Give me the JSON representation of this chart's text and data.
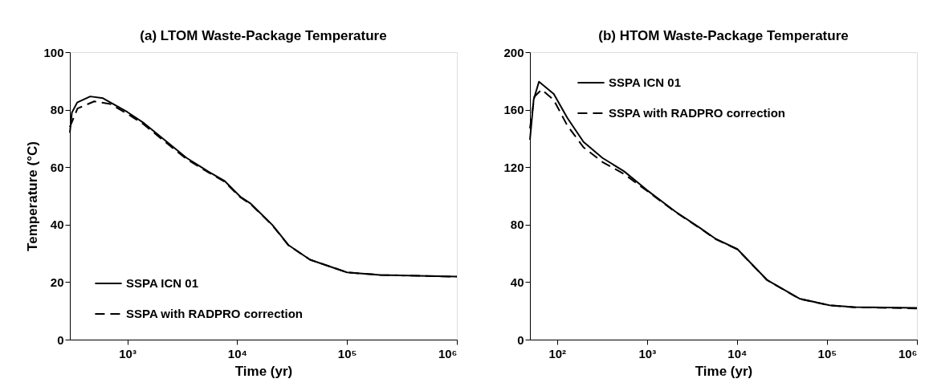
{
  "chart_data": [
    {
      "type": "line",
      "title": "(a) LTOM Waste-Package Temperature",
      "xlabel": "Time (yr)",
      "ylabel": "Temperature (°C)",
      "log": "x",
      "xlim": [
        300,
        1000000
      ],
      "ylim": [
        0,
        100
      ],
      "xticks": [
        {
          "value": 1000,
          "label": "10³"
        },
        {
          "value": 10000,
          "label": "10⁴"
        },
        {
          "value": 100000,
          "label": "10⁵"
        },
        {
          "value": 1000000,
          "label": "10⁶"
        }
      ],
      "yticks": [
        0,
        20,
        40,
        60,
        80,
        100
      ],
      "legend": "bottom left",
      "grid": false,
      "series": [
        {
          "name": "SSPA ICN 01",
          "color": "#000000",
          "line_style": "solid",
          "x": [
            300,
            313,
            350,
            460,
            600,
            1000,
            1420,
            2470,
            3470,
            5450,
            7640,
            10700,
            13300,
            20900,
            29300,
            46100,
            100000,
            200000,
            1000000
          ],
          "values": [
            72,
            79,
            82.5,
            84.6,
            84,
            79.2,
            75.3,
            67.8,
            63.2,
            58.5,
            55.3,
            49.7,
            47.3,
            39.9,
            32.9,
            27.8,
            23.4,
            22.5,
            21.9
          ]
        },
        {
          "name": "SSPA with RADPRO correction",
          "color": "#000000",
          "line_style": "dashed",
          "x": [
            300,
            352,
            500,
            700,
            1000,
            1420,
            2470,
            3470,
            5450,
            7640,
            10700,
            13300,
            20900,
            29300,
            46100,
            100000,
            200000,
            1000000
          ],
          "values": [
            74,
            80.4,
            82.9,
            82,
            78.6,
            74.8,
            67.3,
            62.8,
            58.2,
            55,
            49.5,
            47.1,
            39.8,
            32.8,
            27.8,
            23.4,
            22.5,
            21.9
          ]
        }
      ]
    },
    {
      "type": "line",
      "title": "(b) HTOM Waste-Package Temperature",
      "xlabel": "Time (yr)",
      "log": "x",
      "xlim": [
        50,
        1000000
      ],
      "ylim": [
        0,
        200
      ],
      "xticks": [
        {
          "value": 100,
          "label": "10²"
        },
        {
          "value": 1000,
          "label": "10³"
        },
        {
          "value": 10000,
          "label": "10⁴"
        },
        {
          "value": 100000,
          "label": "10⁵"
        },
        {
          "value": 1000000,
          "label": "10⁶"
        }
      ],
      "yticks": [
        0,
        40,
        80,
        120,
        160,
        200
      ],
      "legend": "top left",
      "grid": false,
      "series": [
        {
          "name": "SSPA ICN 01",
          "color": "#000000",
          "line_style": "solid",
          "x": [
            50,
            55,
            63,
            92,
            130,
            197,
            320,
            556,
            1000,
            2065,
            3850,
            5840,
            10100,
            21500,
            49400,
            107000,
            200000,
            1000000
          ],
          "values": [
            139,
            167,
            179.5,
            171,
            154.3,
            137.6,
            126.4,
            117.1,
            104,
            89.1,
            77.9,
            70,
            63,
            41.6,
            28.5,
            23.9,
            22.6,
            22
          ]
        },
        {
          "name": "SSPA with RADPRO correction",
          "color": "#000000",
          "line_style": "dashed",
          "x": [
            50,
            56,
            67.5,
            92,
            130,
            197,
            320,
            556,
            1000,
            2065,
            3850,
            5840,
            10100,
            21500,
            49400,
            107000,
            200000,
            1000000
          ],
          "values": [
            147,
            169,
            174,
            166.7,
            149,
            133.8,
            123.6,
            115.2,
            103.5,
            88.8,
            77.6,
            69.8,
            62.8,
            41.5,
            28.4,
            23.8,
            22.5,
            21.7
          ]
        }
      ]
    }
  ]
}
